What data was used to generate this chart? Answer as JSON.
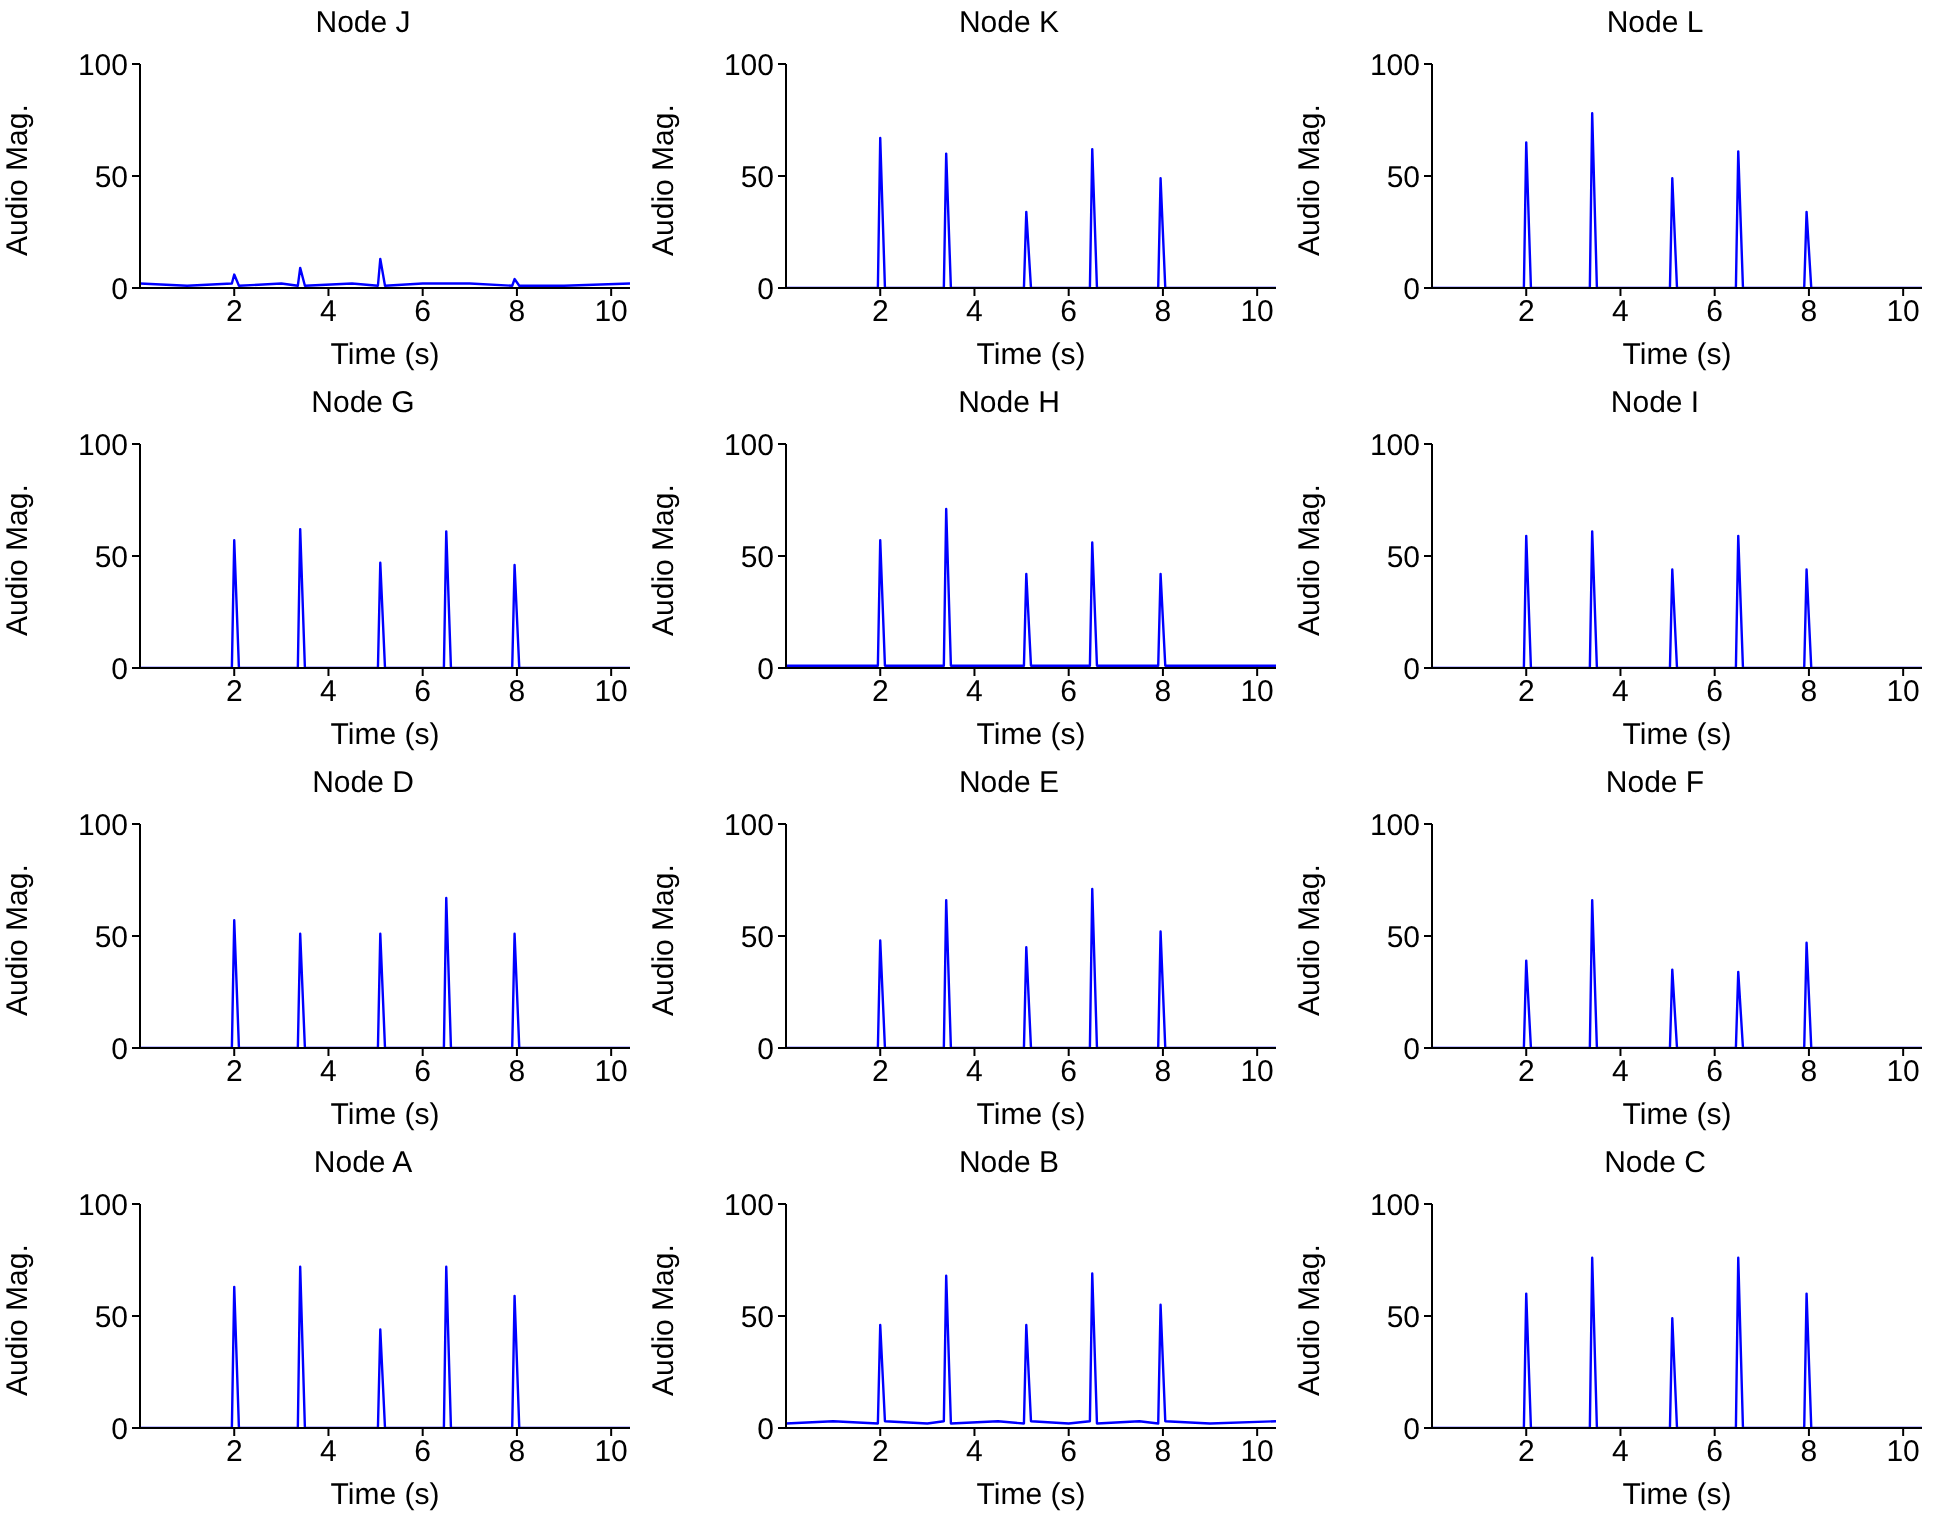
{
  "chart_data": [
    {
      "type": "line",
      "title": "Node J",
      "xlabel": "Time (s)",
      "ylabel": "Audio Mag.",
      "xlim": [
        0,
        10.4
      ],
      "xticks": [
        2,
        4,
        6,
        8,
        10
      ],
      "ylim": [
        0,
        100
      ],
      "yticks": [
        0,
        50,
        100
      ],
      "series": [
        {
          "color": "#0000ff",
          "x": [
            0,
            1,
            1.95,
            2.0,
            2.1,
            3,
            3.35,
            3.4,
            3.5,
            4.5,
            5.05,
            5.1,
            5.2,
            6,
            7,
            7.9,
            7.95,
            8.05,
            9,
            10.4
          ],
          "values": [
            2,
            1,
            2,
            6,
            1,
            2,
            1,
            9,
            1,
            2,
            1,
            13,
            1,
            2,
            2,
            1,
            4,
            1,
            1,
            2
          ]
        }
      ]
    },
    {
      "type": "line",
      "title": "Node K",
      "xlabel": "Time (s)",
      "ylabel": "Audio Mag.",
      "xlim": [
        0,
        10.4
      ],
      "xticks": [
        2,
        4,
        6,
        8,
        10
      ],
      "ylim": [
        0,
        100
      ],
      "yticks": [
        0,
        50,
        100
      ],
      "series": [
        {
          "color": "#0000ff",
          "x": [
            0,
            1.95,
            2.0,
            2.1,
            3.35,
            3.4,
            3.5,
            5.05,
            5.1,
            5.2,
            6.45,
            6.5,
            6.6,
            7.9,
            7.95,
            8.05,
            10.4
          ],
          "values": [
            0,
            0,
            67,
            0,
            0,
            60,
            0,
            0,
            34,
            0,
            0,
            62,
            0,
            0,
            49,
            0,
            0
          ]
        }
      ]
    },
    {
      "type": "line",
      "title": "Node L",
      "xlabel": "Time (s)",
      "ylabel": "Audio Mag.",
      "xlim": [
        0,
        10.4
      ],
      "xticks": [
        2,
        4,
        6,
        8,
        10
      ],
      "ylim": [
        0,
        100
      ],
      "yticks": [
        0,
        50,
        100
      ],
      "series": [
        {
          "color": "#0000ff",
          "x": [
            0,
            1.95,
            2.0,
            2.1,
            3.35,
            3.4,
            3.5,
            5.05,
            5.1,
            5.2,
            6.45,
            6.5,
            6.6,
            7.9,
            7.95,
            8.05,
            10.4
          ],
          "values": [
            0,
            0,
            65,
            0,
            0,
            78,
            0,
            0,
            49,
            0,
            0,
            61,
            0,
            0,
            34,
            0,
            0
          ]
        }
      ]
    },
    {
      "type": "line",
      "title": "Node G",
      "xlabel": "Time (s)",
      "ylabel": "Audio Mag.",
      "xlim": [
        0,
        10.4
      ],
      "xticks": [
        2,
        4,
        6,
        8,
        10
      ],
      "ylim": [
        0,
        100
      ],
      "yticks": [
        0,
        50,
        100
      ],
      "series": [
        {
          "color": "#0000ff",
          "x": [
            0,
            1.95,
            2.0,
            2.1,
            3.35,
            3.4,
            3.5,
            5.05,
            5.1,
            5.2,
            6.45,
            6.5,
            6.6,
            7.9,
            7.95,
            8.05,
            10.4
          ],
          "values": [
            0,
            0,
            57,
            0,
            0,
            62,
            0,
            0,
            47,
            0,
            0,
            61,
            0,
            0,
            46,
            0,
            0
          ]
        }
      ]
    },
    {
      "type": "line",
      "title": "Node H",
      "xlabel": "Time (s)",
      "ylabel": "Audio Mag.",
      "xlim": [
        0,
        10.4
      ],
      "xticks": [
        2,
        4,
        6,
        8,
        10
      ],
      "ylim": [
        0,
        100
      ],
      "yticks": [
        0,
        50,
        100
      ],
      "series": [
        {
          "color": "#0000ff",
          "x": [
            0,
            1.95,
            2.0,
            2.1,
            3.35,
            3.4,
            3.5,
            5.05,
            5.1,
            5.2,
            6.45,
            6.5,
            6.6,
            7.9,
            7.95,
            8.05,
            10.4
          ],
          "values": [
            1,
            1,
            57,
            1,
            1,
            71,
            1,
            1,
            42,
            1,
            1,
            56,
            1,
            1,
            42,
            1,
            1
          ]
        }
      ]
    },
    {
      "type": "line",
      "title": "Node I",
      "xlabel": "Time (s)",
      "ylabel": "Audio Mag.",
      "xlim": [
        0,
        10.4
      ],
      "xticks": [
        2,
        4,
        6,
        8,
        10
      ],
      "ylim": [
        0,
        100
      ],
      "yticks": [
        0,
        50,
        100
      ],
      "series": [
        {
          "color": "#0000ff",
          "x": [
            0,
            1.95,
            2.0,
            2.1,
            3.35,
            3.4,
            3.5,
            5.05,
            5.1,
            5.2,
            6.45,
            6.5,
            6.6,
            7.9,
            7.95,
            8.05,
            10.4
          ],
          "values": [
            0,
            0,
            59,
            0,
            0,
            61,
            0,
            0,
            44,
            0,
            0,
            59,
            0,
            0,
            44,
            0,
            0
          ]
        }
      ]
    },
    {
      "type": "line",
      "title": "Node D",
      "xlabel": "Time (s)",
      "ylabel": "Audio Mag.",
      "xlim": [
        0,
        10.4
      ],
      "xticks": [
        2,
        4,
        6,
        8,
        10
      ],
      "ylim": [
        0,
        100
      ],
      "yticks": [
        0,
        50,
        100
      ],
      "series": [
        {
          "color": "#0000ff",
          "x": [
            0,
            1.95,
            2.0,
            2.1,
            3.35,
            3.4,
            3.5,
            5.05,
            5.1,
            5.2,
            6.45,
            6.5,
            6.6,
            7.9,
            7.95,
            8.05,
            10.4
          ],
          "values": [
            0,
            0,
            57,
            0,
            0,
            51,
            0,
            0,
            51,
            0,
            0,
            67,
            0,
            0,
            51,
            0,
            0
          ]
        }
      ]
    },
    {
      "type": "line",
      "title": "Node E",
      "xlabel": "Time (s)",
      "ylabel": "Audio Mag.",
      "xlim": [
        0,
        10.4
      ],
      "xticks": [
        2,
        4,
        6,
        8,
        10
      ],
      "ylim": [
        0,
        100
      ],
      "yticks": [
        0,
        50,
        100
      ],
      "series": [
        {
          "color": "#0000ff",
          "x": [
            0,
            1.95,
            2.0,
            2.1,
            3.35,
            3.4,
            3.5,
            5.05,
            5.1,
            5.2,
            6.45,
            6.5,
            6.6,
            7.9,
            7.95,
            8.05,
            10.4
          ],
          "values": [
            0,
            0,
            48,
            0,
            0,
            66,
            0,
            0,
            45,
            0,
            0,
            71,
            0,
            0,
            52,
            0,
            0
          ]
        }
      ]
    },
    {
      "type": "line",
      "title": "Node F",
      "xlabel": "Time (s)",
      "ylabel": "Audio Mag.",
      "xlim": [
        0,
        10.4
      ],
      "xticks": [
        2,
        4,
        6,
        8,
        10
      ],
      "ylim": [
        0,
        100
      ],
      "yticks": [
        0,
        50,
        100
      ],
      "series": [
        {
          "color": "#0000ff",
          "x": [
            0,
            1.95,
            2.0,
            2.1,
            3.35,
            3.4,
            3.5,
            5.05,
            5.1,
            5.2,
            6.45,
            6.5,
            6.6,
            7.9,
            7.95,
            8.05,
            10.4
          ],
          "values": [
            0,
            0,
            39,
            0,
            0,
            66,
            0,
            0,
            35,
            0,
            0,
            34,
            0,
            0,
            47,
            0,
            0
          ]
        }
      ]
    },
    {
      "type": "line",
      "title": "Node A",
      "xlabel": "Time (s)",
      "ylabel": "Audio Mag.",
      "xlim": [
        0,
        10.4
      ],
      "xticks": [
        2,
        4,
        6,
        8,
        10
      ],
      "ylim": [
        0,
        100
      ],
      "yticks": [
        0,
        50,
        100
      ],
      "series": [
        {
          "color": "#0000ff",
          "x": [
            0,
            1.95,
            2.0,
            2.1,
            3.35,
            3.4,
            3.5,
            5.05,
            5.1,
            5.2,
            6.45,
            6.5,
            6.6,
            7.9,
            7.95,
            8.05,
            10.4
          ],
          "values": [
            0,
            0,
            63,
            0,
            0,
            72,
            0,
            0,
            44,
            0,
            0,
            72,
            0,
            0,
            59,
            0,
            0
          ]
        }
      ]
    },
    {
      "type": "line",
      "title": "Node B",
      "xlabel": "Time (s)",
      "ylabel": "Audio Mag.",
      "xlim": [
        0,
        10.4
      ],
      "xticks": [
        2,
        4,
        6,
        8,
        10
      ],
      "ylim": [
        0,
        100
      ],
      "yticks": [
        0,
        50,
        100
      ],
      "series": [
        {
          "color": "#0000ff",
          "x": [
            0,
            1,
            1.95,
            2.0,
            2.1,
            3,
            3.35,
            3.4,
            3.5,
            4.5,
            5.05,
            5.1,
            5.2,
            6,
            6.45,
            6.5,
            6.6,
            7.5,
            7.9,
            7.95,
            8.05,
            9,
            10.4
          ],
          "values": [
            2,
            3,
            2,
            46,
            3,
            2,
            3,
            68,
            2,
            3,
            2,
            46,
            3,
            2,
            3,
            69,
            2,
            3,
            2,
            55,
            3,
            2,
            3
          ]
        }
      ]
    },
    {
      "type": "line",
      "title": "Node C",
      "xlabel": "Time (s)",
      "ylabel": "Audio Mag.",
      "xlim": [
        0,
        10.4
      ],
      "xticks": [
        2,
        4,
        6,
        8,
        10
      ],
      "ylim": [
        0,
        100
      ],
      "yticks": [
        0,
        50,
        100
      ],
      "series": [
        {
          "color": "#0000ff",
          "x": [
            0,
            1.95,
            2.0,
            2.1,
            3.35,
            3.4,
            3.5,
            5.05,
            5.1,
            5.2,
            6.45,
            6.5,
            6.6,
            7.9,
            7.95,
            8.05,
            10.4
          ],
          "values": [
            0,
            0,
            60,
            0,
            0,
            76,
            0,
            0,
            49,
            0,
            0,
            76,
            0,
            0,
            60,
            0,
            0
          ]
        }
      ]
    }
  ]
}
